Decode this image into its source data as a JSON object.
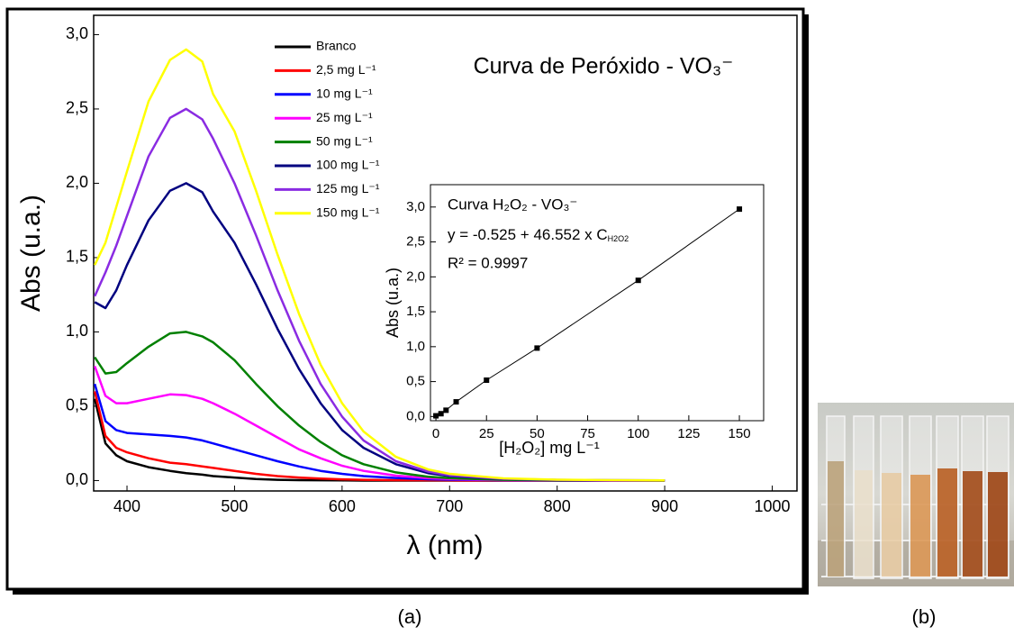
{
  "chart_data": [
    {
      "type": "line",
      "title": "Curva de Peróxido - VO₃⁻",
      "x_label": "λ (nm)",
      "y_label": "Abs (u.a.)",
      "x": [
        370,
        380,
        390,
        400,
        420,
        440,
        455,
        470,
        480,
        500,
        520,
        540,
        560,
        580,
        600,
        620,
        650,
        680,
        700,
        750,
        800,
        850,
        900
      ],
      "series": [
        {
          "name": "Branco",
          "color": "#000000",
          "values": [
            0.55,
            0.25,
            0.17,
            0.13,
            0.09,
            0.065,
            0.05,
            0.04,
            0.03,
            0.02,
            0.01,
            0.005,
            0.003,
            0.002,
            0.001,
            0,
            0,
            0,
            0,
            0,
            0,
            0,
            0
          ]
        },
        {
          "name": "2,5 mg L⁻¹",
          "color": "#ff0000",
          "values": [
            0.6,
            0.3,
            0.22,
            0.19,
            0.15,
            0.12,
            0.11,
            0.095,
            0.085,
            0.065,
            0.045,
            0.03,
            0.02,
            0.013,
            0.008,
            0.005,
            0.003,
            0.002,
            0.001,
            0,
            0,
            0,
            0
          ]
        },
        {
          "name": "10 mg L⁻¹",
          "color": "#0000ff",
          "values": [
            0.65,
            0.4,
            0.34,
            0.32,
            0.31,
            0.3,
            0.29,
            0.27,
            0.25,
            0.21,
            0.17,
            0.13,
            0.095,
            0.065,
            0.045,
            0.03,
            0.017,
            0.009,
            0.006,
            0.002,
            0,
            0,
            0
          ]
        },
        {
          "name": "25 mg L⁻¹",
          "color": "#ff00ff",
          "values": [
            0.77,
            0.57,
            0.52,
            0.52,
            0.55,
            0.58,
            0.575,
            0.55,
            0.52,
            0.45,
            0.37,
            0.29,
            0.21,
            0.15,
            0.1,
            0.065,
            0.033,
            0.016,
            0.01,
            0.003,
            0.001,
            0,
            0
          ]
        },
        {
          "name": "50 mg L⁻¹",
          "color": "#008000",
          "values": [
            0.83,
            0.72,
            0.73,
            0.79,
            0.9,
            0.99,
            1.0,
            0.97,
            0.93,
            0.81,
            0.65,
            0.5,
            0.37,
            0.26,
            0.17,
            0.11,
            0.055,
            0.026,
            0.016,
            0.005,
            0.002,
            0.001,
            0
          ]
        },
        {
          "name": "100 mg L⁻¹",
          "color": "#000080",
          "values": [
            1.2,
            1.16,
            1.28,
            1.45,
            1.75,
            1.95,
            2.0,
            1.94,
            1.81,
            1.6,
            1.32,
            1.02,
            0.75,
            0.52,
            0.34,
            0.22,
            0.11,
            0.05,
            0.03,
            0.01,
            0.004,
            0.002,
            0.001
          ]
        },
        {
          "name": "125 mg L⁻¹",
          "color": "#8a2be2",
          "values": [
            1.24,
            1.4,
            1.58,
            1.78,
            2.18,
            2.44,
            2.5,
            2.43,
            2.3,
            2.0,
            1.65,
            1.28,
            0.94,
            0.65,
            0.43,
            0.27,
            0.13,
            0.06,
            0.035,
            0.012,
            0.005,
            0.002,
            0.001
          ]
        },
        {
          "name": "150 mg L⁻¹",
          "color": "#ffff00",
          "values": [
            1.45,
            1.6,
            1.84,
            2.08,
            2.55,
            2.83,
            2.9,
            2.82,
            2.6,
            2.35,
            1.95,
            1.52,
            1.12,
            0.78,
            0.52,
            0.33,
            0.16,
            0.075,
            0.045,
            0.015,
            0.006,
            0.003,
            0.001
          ]
        }
      ],
      "xlim": [
        369,
        1023
      ],
      "ylim": [
        -0.07,
        3.13
      ],
      "xticks": [
        400,
        500,
        600,
        700,
        800,
        900,
        1000
      ],
      "yticks": [
        {
          "value": 0,
          "label": "0,0"
        },
        {
          "value": 0.5,
          "label": "0,5"
        },
        {
          "value": 1,
          "label": "1,0"
        },
        {
          "value": 1.5,
          "label": "1,5"
        },
        {
          "value": 2,
          "label": "2,0"
        },
        {
          "value": 2.5,
          "label": "2,5"
        },
        {
          "value": 3,
          "label": "3,0"
        }
      ],
      "legend": "upper-left"
    },
    {
      "type": "line",
      "markers": true,
      "title": "Curva H₂O₂ - VO₃⁻",
      "equation": {
        "text": "y = -0.525 + 46.552 x C",
        "subscript": "H2O2"
      },
      "r_squared": "R² = 0.9997",
      "x_label": "[H₂O₂] mg L⁻¹",
      "y_label": "Abs (u.a.)",
      "x": [
        0,
        2.5,
        5,
        10,
        25,
        50,
        100,
        150
      ],
      "series": [
        {
          "color": "#000000",
          "values": [
            0.01,
            0.04,
            0.09,
            0.21,
            0.52,
            0.98,
            1.95,
            2.97
          ]
        }
      ],
      "xlim": [
        -2.7,
        162
      ],
      "ylim": [
        -0.06,
        3.32
      ],
      "xticks": [
        0,
        25,
        50,
        75,
        100,
        125,
        150
      ],
      "yticks": [
        {
          "value": 0,
          "label": "0,0"
        },
        {
          "value": 0.5,
          "label": "0,5"
        },
        {
          "value": 1,
          "label": "1,0"
        },
        {
          "value": 1.5,
          "label": "1,5"
        },
        {
          "value": 2,
          "label": "2,0"
        },
        {
          "value": 2.5,
          "label": "2,5"
        },
        {
          "value": 3,
          "label": "3,0"
        }
      ]
    }
  ],
  "panel_labels": [
    "(a)",
    "(b)"
  ]
}
